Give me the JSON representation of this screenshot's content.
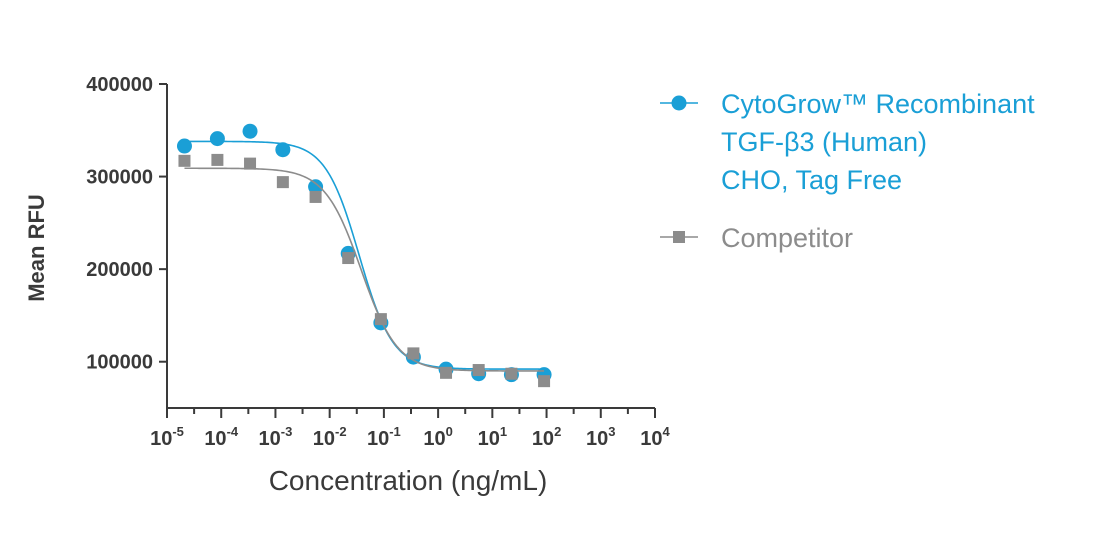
{
  "chart_data": {
    "type": "scatter",
    "xlabel": "Concentration (ng/mL)",
    "ylabel": "Mean RFU",
    "x_scale": "log",
    "xlim": [
      1e-05,
      10000
    ],
    "ylim": [
      50000,
      400000
    ],
    "x_ticks": [
      {
        "value": 1e-05,
        "base": "10",
        "exp": "-5"
      },
      {
        "value": 0.0001,
        "base": "10",
        "exp": "-4"
      },
      {
        "value": 0.001,
        "base": "10",
        "exp": "-3"
      },
      {
        "value": 0.01,
        "base": "10",
        "exp": "-2"
      },
      {
        "value": 0.1,
        "base": "10",
        "exp": "-1"
      },
      {
        "value": 1,
        "base": "10",
        "exp": "0"
      },
      {
        "value": 10,
        "base": "10",
        "exp": "1"
      },
      {
        "value": 100,
        "base": "10",
        "exp": "2"
      },
      {
        "value": 1000,
        "base": "10",
        "exp": "3"
      },
      {
        "value": 10000,
        "base": "10",
        "exp": "4"
      }
    ],
    "y_ticks": [
      {
        "value": 100000,
        "label": "100000"
      },
      {
        "value": 200000,
        "label": "200000"
      },
      {
        "value": 300000,
        "label": "300000"
      },
      {
        "value": 400000,
        "label": "400000"
      }
    ],
    "legend_position": "right",
    "series": [
      {
        "name_lines": [
          "CytoGrow™ Recombinant",
          "TGF-β3 (Human)",
          "CHO, Tag Free"
        ],
        "color": "#1a9fd6",
        "marker": "circle",
        "points": [
          [
            2.1e-05,
            333000
          ],
          [
            8.5e-05,
            341000
          ],
          [
            0.00034,
            349000
          ],
          [
            0.00137,
            329000
          ],
          [
            0.0055,
            289000
          ],
          [
            0.022,
            217000
          ],
          [
            0.088,
            142000
          ],
          [
            0.35,
            105000
          ],
          [
            1.4,
            92000
          ],
          [
            5.6,
            87000
          ],
          [
            22.5,
            86000
          ],
          [
            90,
            86000
          ]
        ],
        "fit": {
          "top": 338000,
          "bottom": 92000,
          "ec50": 0.035,
          "hill": 1.4
        }
      },
      {
        "name_lines": [
          "Competitor"
        ],
        "color": "#8c8c8c",
        "marker": "square",
        "points": [
          [
            2.1e-05,
            317000
          ],
          [
            8.5e-05,
            318000
          ],
          [
            0.00034,
            314000
          ],
          [
            0.00137,
            294000
          ],
          [
            0.0055,
            278000
          ],
          [
            0.022,
            212000
          ],
          [
            0.088,
            146000
          ],
          [
            0.35,
            109000
          ],
          [
            1.4,
            88000
          ],
          [
            5.6,
            91000
          ],
          [
            22.5,
            87000
          ],
          [
            90,
            79000
          ]
        ],
        "fit": {
          "top": 309000,
          "bottom": 90000,
          "ec50": 0.038,
          "hill": 1.3
        }
      }
    ]
  }
}
